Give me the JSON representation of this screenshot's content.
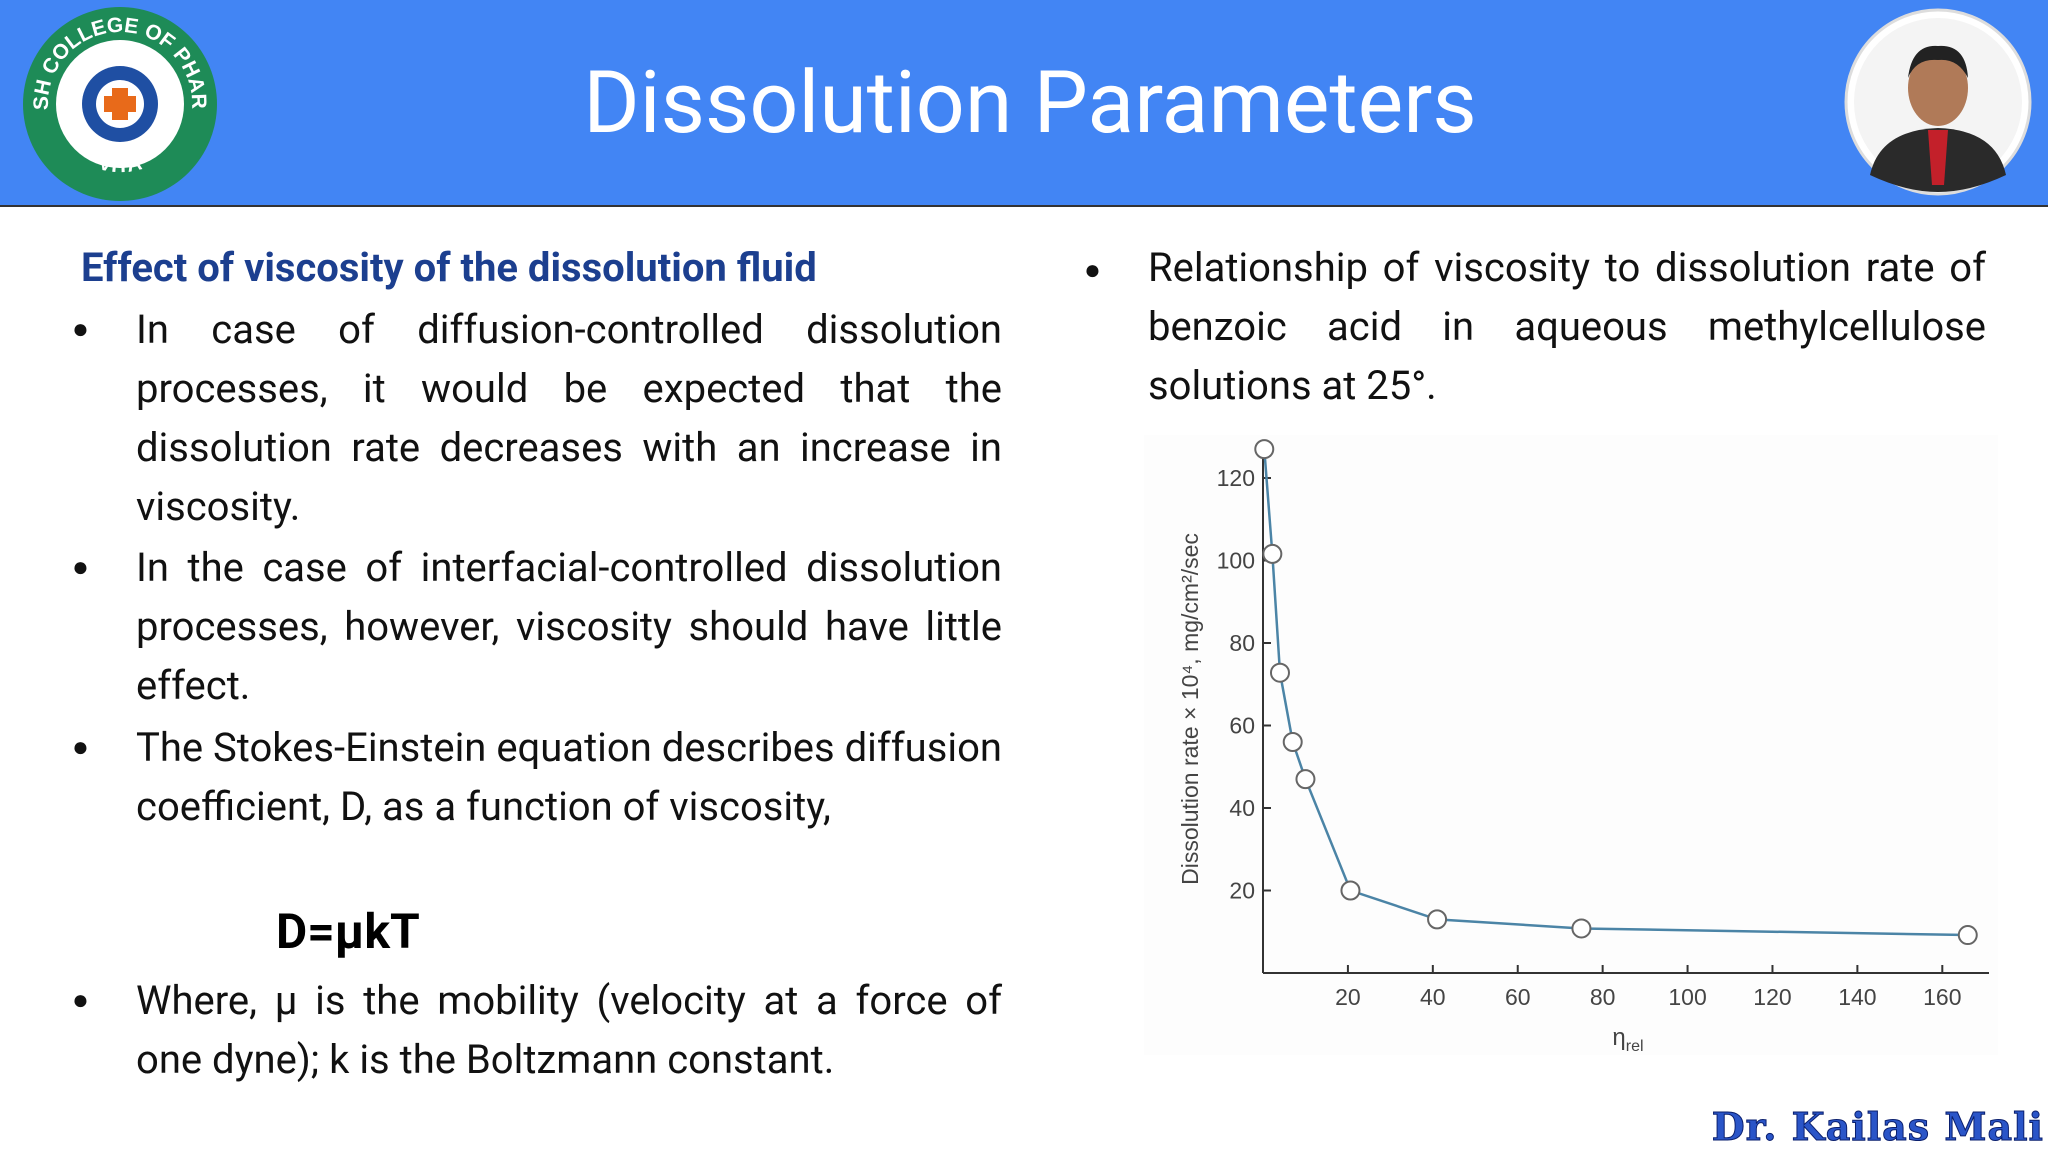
{
  "header": {
    "title": "Dissolution Parameters",
    "logo": {
      "name": "ADARSH COLLEGE OF PHARMACY",
      "place": "VITA"
    }
  },
  "left": {
    "heading": "Effect of viscosity of the dissolution fluid",
    "bullets": [
      "In case of diffusion-controlled dissolution processes, it would be expected that the dissolution rate decreases with an increase in viscosity.",
      "In the case of interfacial-controlled dissolution processes, however, viscosity should have little effect.",
      "The Stokes-Einstein equation describes diffusion coefficient, D, as a function of viscosity,"
    ],
    "equation": "D=μkT",
    "bullet_after": "Where, μ is the mobility (velocity at a force of one dyne); k is the Boltzmann constant."
  },
  "right": {
    "bullet": "Relationship of viscosity to dissolution rate of benzoic acid in aqueous methylcellulose solutions at 25°."
  },
  "chart_data": {
    "type": "scatter",
    "y_label": "Dissolution rate × 10⁴, mg/cm²/sec",
    "x_label": {
      "symbol": "η",
      "subscript": "rel"
    },
    "x": [
      0.3,
      2.2,
      4,
      7,
      10,
      20.6,
      41,
      75,
      166
    ],
    "series": [
      {
        "color": "#4b84a6",
        "values": [
          127,
          101.6,
          72.8,
          56,
          47,
          20,
          13,
          10.8,
          9.2
        ]
      }
    ],
    "xlim": [
      0,
      171
    ],
    "ylim": [
      0,
      128
    ],
    "xticks": [
      20,
      40,
      60,
      80,
      100,
      120,
      140,
      160
    ],
    "yticks": [
      20,
      40,
      60,
      80,
      100,
      120
    ]
  },
  "footer": {
    "watermark": "Dr. Kailas Mali"
  }
}
